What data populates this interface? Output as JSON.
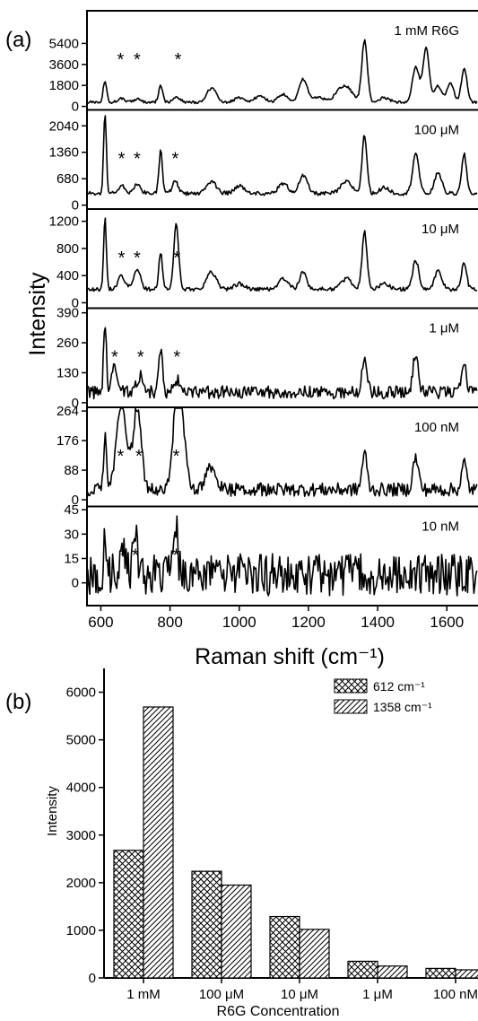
{
  "chart_data": [
    {
      "type": "line",
      "panel_label": "(a)",
      "xlabel": "Raman shift (cm⁻¹)",
      "ylabel": "Intensity",
      "xlim": [
        560,
        1690
      ],
      "x_ticks": [
        600,
        800,
        1000,
        1200,
        1400,
        1600
      ],
      "x_tick_labels": [
        "600",
        "800",
        "1000",
        "1200",
        "1400",
        "1600"
      ],
      "peak_marker": "*",
      "panels": [
        {
          "name": "1 mM R6G",
          "ylim": [
            -300,
            8200
          ],
          "y_ticks": [
            0,
            1800,
            3600,
            5400
          ],
          "y_tick_labels": [
            "0",
            "1800",
            "3600",
            "5400"
          ],
          "baseline": 350,
          "noise": 110,
          "peaks": [
            [
              612,
              1900,
              5
            ],
            [
              660,
              350,
              10
            ],
            [
              705,
              300,
              10
            ],
            [
              773,
              1400,
              6
            ],
            [
              820,
              450,
              10
            ],
            [
              920,
              1200,
              14
            ],
            [
              1000,
              400,
              14
            ],
            [
              1060,
              500,
              16
            ],
            [
              1127,
              700,
              14
            ],
            [
              1185,
              2000,
              12
            ],
            [
              1230,
              500,
              14
            ],
            [
              1290,
              900,
              16
            ],
            [
              1315,
              1000,
              16
            ],
            [
              1362,
              5300,
              8
            ],
            [
              1420,
              400,
              14
            ],
            [
              1510,
              3000,
              10
            ],
            [
              1540,
              4600,
              9
            ],
            [
              1575,
              1400,
              10
            ],
            [
              1610,
              1600,
              10
            ],
            [
              1650,
              2900,
              8
            ]
          ],
          "stars_x": [
            657,
            705,
            823
          ]
        },
        {
          "name": "100 μM",
          "ylim": [
            -100,
            2450
          ],
          "y_ticks": [
            0,
            680,
            1360,
            2040
          ],
          "y_tick_labels": [
            "0",
            "680",
            "1360",
            "2040"
          ],
          "baseline": 300,
          "noise": 50,
          "peaks": [
            [
              612,
              2050,
              4
            ],
            [
              660,
              200,
              10
            ],
            [
              705,
              250,
              10
            ],
            [
              773,
              1100,
              5
            ],
            [
              815,
              350,
              8
            ],
            [
              920,
              300,
              14
            ],
            [
              1000,
              200,
              14
            ],
            [
              1127,
              250,
              14
            ],
            [
              1185,
              450,
              12
            ],
            [
              1310,
              300,
              16
            ],
            [
              1362,
              1500,
              7
            ],
            [
              1420,
              150,
              14
            ],
            [
              1510,
              1050,
              9
            ],
            [
              1575,
              550,
              10
            ],
            [
              1650,
              1000,
              7
            ]
          ],
          "stars_x": [
            660,
            705,
            815
          ]
        },
        {
          "name": "10 μM",
          "ylim": [
            -80,
            1380
          ],
          "y_ticks": [
            0,
            400,
            800,
            1200
          ],
          "y_tick_labels": [
            "0",
            "400",
            "800",
            "1200"
          ],
          "baseline": 200,
          "noise": 30,
          "peaks": [
            [
              612,
              1050,
              4
            ],
            [
              660,
              200,
              10
            ],
            [
              705,
              280,
              10
            ],
            [
              773,
              550,
              5
            ],
            [
              818,
              950,
              7
            ],
            [
              920,
              250,
              14
            ],
            [
              1000,
              80,
              14
            ],
            [
              1127,
              150,
              14
            ],
            [
              1185,
              250,
              10
            ],
            [
              1310,
              150,
              16
            ],
            [
              1362,
              850,
              7
            ],
            [
              1420,
              80,
              14
            ],
            [
              1510,
              420,
              9
            ],
            [
              1575,
              280,
              10
            ],
            [
              1650,
              400,
              7
            ]
          ],
          "stars_x": [
            660,
            705,
            820
          ]
        },
        {
          "name": "1 μM",
          "ylim": [
            -20,
            410
          ],
          "y_ticks": [
            0,
            130,
            260,
            390
          ],
          "y_tick_labels": [
            "0",
            "130",
            "260",
            "390"
          ],
          "baseline": 45,
          "noise": 28,
          "peaks": [
            [
              612,
              300,
              4
            ],
            [
              640,
              110,
              8
            ],
            [
              715,
              70,
              10
            ],
            [
              773,
              200,
              5
            ],
            [
              820,
              50,
              10
            ],
            [
              1362,
              160,
              7
            ],
            [
              1510,
              170,
              8
            ],
            [
              1650,
              110,
              7
            ]
          ],
          "stars_x": [
            640,
            715,
            820
          ]
        },
        {
          "name": "100 nM",
          "ylim": [
            -20,
            275
          ],
          "y_ticks": [
            0,
            88,
            176,
            264
          ],
          "y_tick_labels": [
            "0",
            "88",
            "176",
            "264"
          ],
          "baseline": 30,
          "noise": 20,
          "peaks": [
            [
              612,
              160,
              4
            ],
            [
              660,
              260,
              14
            ],
            [
              705,
              240,
              12
            ],
            [
              825,
              330,
              14
            ],
            [
              920,
              70,
              14
            ],
            [
              1362,
              110,
              7
            ],
            [
              1510,
              95,
              8
            ],
            [
              1650,
              80,
              7
            ]
          ],
          "stars_x": [
            657,
            710,
            818
          ]
        },
        {
          "name": "10 nM",
          "ylim": [
            -14,
            47
          ],
          "y_ticks": [
            0,
            15,
            30,
            45
          ],
          "y_tick_labels": [
            "0",
            "15",
            "30",
            "45"
          ],
          "baseline": 5,
          "noise": 13,
          "peaks": [
            [
              612,
              22,
              4
            ],
            [
              665,
              20,
              6
            ],
            [
              697,
              30,
              6
            ],
            [
              815,
              35,
              6
            ]
          ],
          "stars_x": [
            665,
            700,
            818
          ]
        }
      ]
    },
    {
      "type": "bar",
      "panel_label": "(b)",
      "xlabel": "R6G Concentration",
      "ylabel": "Intensity",
      "ylim": [
        0,
        6500
      ],
      "y_ticks": [
        0,
        1000,
        2000,
        3000,
        4000,
        5000,
        6000
      ],
      "y_tick_labels": [
        "0",
        "1000",
        "2000",
        "3000",
        "4000",
        "5000",
        "6000"
      ],
      "categories": [
        "1 mM",
        "100 μM",
        "10 μM",
        "1 μM",
        "100 nM"
      ],
      "series": [
        {
          "name": "612 cm⁻¹",
          "pattern": "crosshatch",
          "values": [
            2680,
            2240,
            1290,
            350,
            200
          ]
        },
        {
          "name": "1358 cm⁻¹",
          "pattern": "diagonal",
          "values": [
            5690,
            1950,
            1020,
            250,
            170
          ]
        }
      ],
      "legend_position": "top-right"
    }
  ]
}
